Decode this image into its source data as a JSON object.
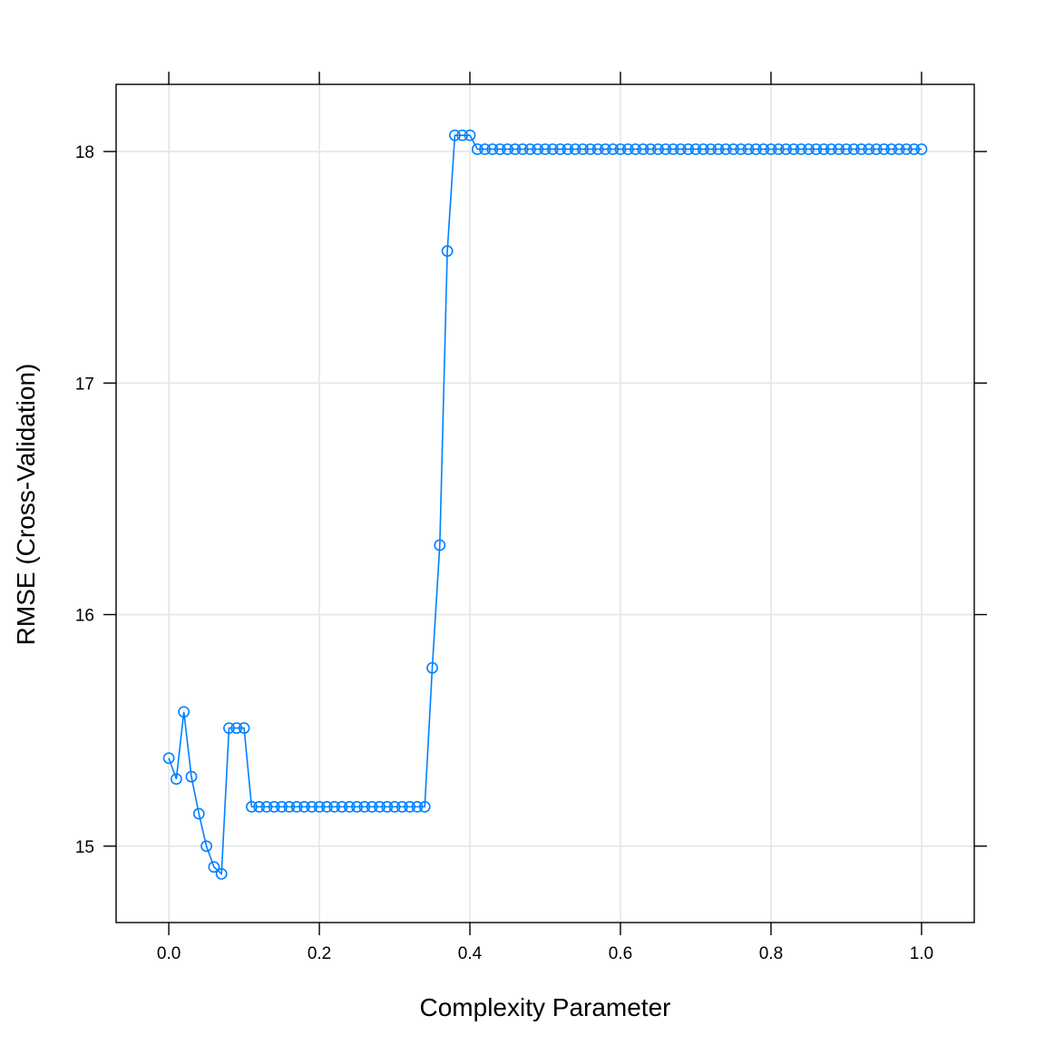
{
  "chart_data": {
    "type": "line",
    "title": "",
    "xlabel": "Complexity Parameter",
    "ylabel": "RMSE (Cross-Validation)",
    "xlim": [
      -0.07,
      1.07
    ],
    "ylim": [
      14.67,
      18.29
    ],
    "xticks": [
      0,
      0.2,
      0.4,
      0.6,
      0.8,
      1
    ],
    "xtick_labels": [
      "0.0",
      "0.2",
      "0.4",
      "0.6",
      "0.8",
      "1.0"
    ],
    "yticks": [
      15,
      16,
      17,
      18
    ],
    "ytick_labels": [
      "15",
      "16",
      "17",
      "18"
    ],
    "grid": true,
    "markers": "open-circle",
    "colors": {
      "series": "#0080ff",
      "grid": "#e6e6e6",
      "axis": "#000000"
    },
    "series": [
      {
        "x": [
          0,
          0.01,
          0.02,
          0.03,
          0.04,
          0.05,
          0.06,
          0.07,
          0.08,
          0.09,
          0.1,
          0.11,
          0.12,
          0.13,
          0.14,
          0.15,
          0.16,
          0.17,
          0.18,
          0.19,
          0.2,
          0.21,
          0.22,
          0.23,
          0.24,
          0.25,
          0.26,
          0.27,
          0.28,
          0.29,
          0.3,
          0.31,
          0.32,
          0.33,
          0.34,
          0.35,
          0.36,
          0.37,
          0.38,
          0.39,
          0.4,
          0.41,
          0.42,
          0.43,
          0.44,
          0.45,
          0.46,
          0.47,
          0.48,
          0.49,
          0.5,
          0.51,
          0.52,
          0.53,
          0.54,
          0.55,
          0.56,
          0.57,
          0.58,
          0.59,
          0.6,
          0.61,
          0.62,
          0.63,
          0.64,
          0.65,
          0.66,
          0.67,
          0.68,
          0.69,
          0.7,
          0.71,
          0.72,
          0.73,
          0.74,
          0.75,
          0.76,
          0.77,
          0.78,
          0.79,
          0.8,
          0.81,
          0.82,
          0.83,
          0.84,
          0.85,
          0.86,
          0.87,
          0.88,
          0.89,
          0.9,
          0.91,
          0.92,
          0.93,
          0.94,
          0.95,
          0.96,
          0.97,
          0.98,
          0.99,
          1.0
        ],
        "values": [
          15.38,
          15.29,
          15.58,
          15.3,
          15.14,
          15.0,
          14.91,
          14.88,
          15.51,
          15.51,
          15.51,
          15.17,
          15.17,
          15.17,
          15.17,
          15.17,
          15.17,
          15.17,
          15.17,
          15.17,
          15.17,
          15.17,
          15.17,
          15.17,
          15.17,
          15.17,
          15.17,
          15.17,
          15.17,
          15.17,
          15.17,
          15.17,
          15.17,
          15.17,
          15.17,
          15.77,
          16.3,
          17.57,
          18.07,
          18.07,
          18.07,
          18.01,
          18.01,
          18.01,
          18.01,
          18.01,
          18.01,
          18.01,
          18.01,
          18.01,
          18.01,
          18.01,
          18.01,
          18.01,
          18.01,
          18.01,
          18.01,
          18.01,
          18.01,
          18.01,
          18.01,
          18.01,
          18.01,
          18.01,
          18.01,
          18.01,
          18.01,
          18.01,
          18.01,
          18.01,
          18.01,
          18.01,
          18.01,
          18.01,
          18.01,
          18.01,
          18.01,
          18.01,
          18.01,
          18.01,
          18.01,
          18.01,
          18.01,
          18.01,
          18.01,
          18.01,
          18.01,
          18.01,
          18.01,
          18.01,
          18.01,
          18.01,
          18.01,
          18.01,
          18.01,
          18.01,
          18.01,
          18.01,
          18.01,
          18.01,
          18.01
        ]
      }
    ]
  }
}
